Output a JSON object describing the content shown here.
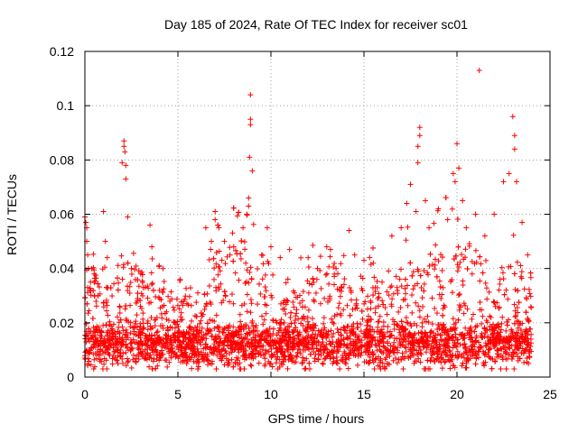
{
  "chart_data": {
    "type": "scatter",
    "title": "Day 185 of 2024, Rate Of TEC Index for receiver sc01",
    "xlabel": "GPS time / hours",
    "ylabel": "ROTI / TECUs",
    "xlim": [
      0,
      25
    ],
    "ylim": [
      0,
      0.12
    ],
    "x_ticks": [
      0,
      5,
      10,
      15,
      20,
      25
    ],
    "y_ticks": [
      0,
      0.02,
      0.04,
      0.06,
      0.08,
      0.1,
      0.12
    ],
    "x_tick_labels": [
      "0",
      "5",
      "10",
      "15",
      "20",
      "25"
    ],
    "y_tick_labels": [
      "0",
      "0.02",
      "0.04",
      "0.06",
      "0.08",
      "0.1",
      "0.12"
    ],
    "grid": true,
    "marker": "+",
    "marker_color": "#ff0000",
    "series": [
      {
        "name": "sc01",
        "x": [
          0.0,
          0.05,
          0.1,
          0.1,
          0.15,
          0.2,
          0.3,
          0.5,
          1.0,
          1.1,
          1.2,
          2.0,
          2.1,
          2.1,
          2.15,
          2.2,
          2.2,
          2.3,
          2.5,
          3.0,
          3.5,
          3.6,
          4.0,
          4.2,
          6.5,
          6.8,
          7.0,
          7.0,
          7.2,
          7.5,
          7.8,
          8.0,
          8.5,
          8.7,
          8.8,
          8.8,
          8.85,
          8.9,
          8.9,
          8.9,
          9.0,
          9.5,
          9.8,
          10.0,
          10.5,
          11.0,
          12.0,
          12.5,
          13.0,
          13.2,
          13.5,
          14.2,
          14.5,
          15.0,
          15.5,
          16.5,
          17.0,
          17.3,
          17.5,
          17.8,
          17.9,
          17.9,
          18.0,
          18.0,
          18.3,
          18.5,
          19.0,
          19.5,
          19.8,
          19.9,
          20.0,
          20.1,
          20.3,
          20.5,
          21.0,
          21.2,
          21.5,
          22.0,
          22.5,
          22.8,
          23.0,
          23.1,
          23.1,
          23.2,
          23.5,
          23.8
        ],
        "y": [
          0.059,
          0.057,
          0.055,
          0.05,
          0.045,
          0.04,
          0.035,
          0.038,
          0.061,
          0.05,
          0.044,
          0.079,
          0.087,
          0.085,
          0.083,
          0.078,
          0.073,
          0.059,
          0.04,
          0.038,
          0.056,
          0.048,
          0.041,
          0.04,
          0.055,
          0.05,
          0.061,
          0.058,
          0.055,
          0.05,
          0.045,
          0.048,
          0.055,
          0.06,
          0.066,
          0.063,
          0.081,
          0.093,
          0.095,
          0.104,
          0.076,
          0.045,
          0.055,
          0.048,
          0.044,
          0.047,
          0.044,
          0.04,
          0.048,
          0.047,
          0.04,
          0.054,
          0.045,
          0.043,
          0.042,
          0.052,
          0.055,
          0.064,
          0.071,
          0.061,
          0.079,
          0.085,
          0.089,
          0.092,
          0.065,
          0.055,
          0.062,
          0.058,
          0.075,
          0.072,
          0.086,
          0.077,
          0.065,
          0.055,
          0.06,
          0.113,
          0.052,
          0.06,
          0.072,
          0.075,
          0.096,
          0.089,
          0.084,
          0.072,
          0.057,
          0.045
        ]
      }
    ],
    "dense_band": {
      "x_range": [
        0,
        24
      ],
      "typical_min": 0.003,
      "typical_max": 0.03,
      "core_value": 0.012
    }
  }
}
